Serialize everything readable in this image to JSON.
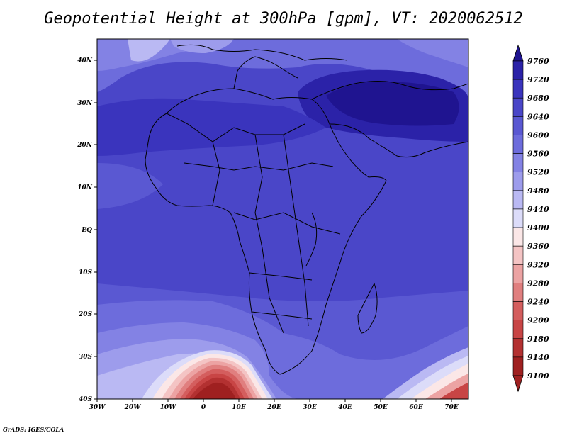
{
  "title": "Geopotential Height at 300hPa [gpm], VT: 2020062512",
  "credit": "GrADS: IGES/COLA",
  "map": {
    "lat_range": [
      -40,
      45
    ],
    "lon_range": [
      -30,
      75
    ],
    "lat_ticks": [
      "40N",
      "30N",
      "20N",
      "10N",
      "EQ",
      "10S",
      "20S",
      "30S",
      "40S"
    ],
    "lon_ticks": [
      "30W",
      "20W",
      "10W",
      "0",
      "10E",
      "20E",
      "30E",
      "40E",
      "50E",
      "60E",
      "70E"
    ]
  },
  "colorbar": {
    "levels": [
      "9760",
      "9720",
      "9680",
      "9640",
      "9600",
      "9560",
      "9520",
      "9480",
      "9440",
      "9400",
      "9360",
      "9320",
      "9280",
      "9240",
      "9200",
      "9180",
      "9140",
      "9100"
    ],
    "colors": [
      "#1f1490",
      "#2b22a8",
      "#3a34bd",
      "#4a46c8",
      "#5a58d2",
      "#6d6cdc",
      "#8382e4",
      "#9d9cec",
      "#bab9f3",
      "#dcdcf9",
      "#fbe7e7",
      "#f4c4c4",
      "#eca3a3",
      "#e07f7f",
      "#d45e5e",
      "#c84545",
      "#b33131",
      "#9f2020"
    ]
  },
  "field": {
    "units": "gpm",
    "level": "300hPa",
    "valid_time": "2020062512",
    "max_region": "Arabia / Red Sea (~9720 gpm)",
    "min_region": "south of South Africa near 40S (~9100 gpm)"
  }
}
